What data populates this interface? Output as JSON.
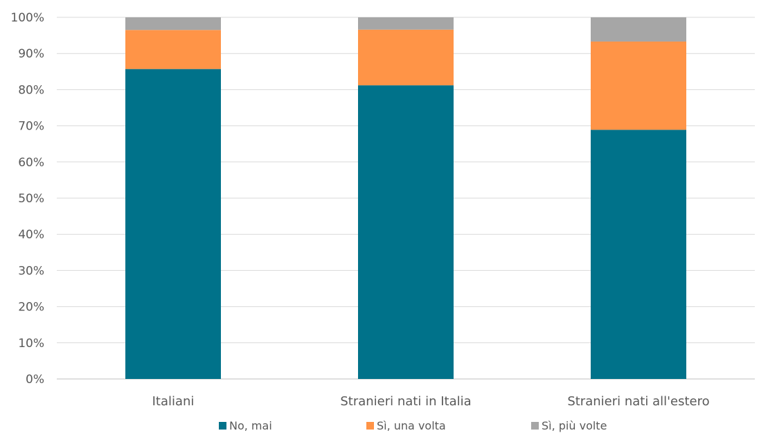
{
  "chart_data": {
    "type": "bar",
    "stacked": true,
    "title": "",
    "xlabel": "",
    "ylabel": "",
    "ylim": [
      0,
      100
    ],
    "y_tick_values": [
      0,
      10,
      20,
      30,
      40,
      50,
      60,
      70,
      80,
      90,
      100
    ],
    "y_tick_labels": [
      "0%",
      "10%",
      "20%",
      "30%",
      "40%",
      "50%",
      "60%",
      "70%",
      "80%",
      "90%",
      "100%"
    ],
    "grid": true,
    "legend_position": "bottom",
    "categories": [
      "Italiani",
      "Stranieri nati in Italia",
      "Stranieri nati all'estero"
    ],
    "series": [
      {
        "name": "No, mai",
        "values": [
          85.7,
          81.2,
          68.9
        ],
        "color": "#00728A"
      },
      {
        "name": "Sì, una volta",
        "values": [
          10.8,
          15.4,
          24.4
        ],
        "color": "#FF9447"
      },
      {
        "name": "Sì, più volte",
        "values": [
          3.5,
          3.4,
          6.7
        ],
        "color": "#A6A6A6"
      }
    ]
  }
}
